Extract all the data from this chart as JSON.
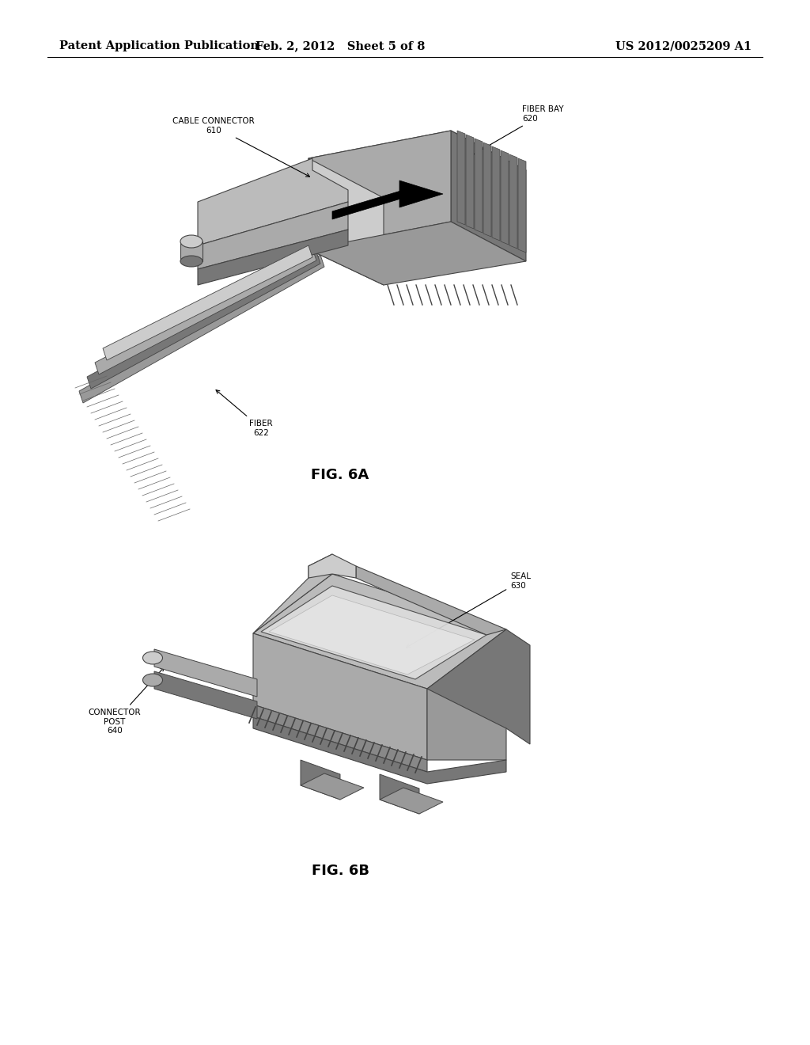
{
  "page_header_left": "Patent Application Publication",
  "page_header_center": "Feb. 2, 2012   Sheet 5 of 8",
  "page_header_right": "US 2012/0025209 A1",
  "fig_a_label": "FIG. 6A",
  "fig_b_label": "FIG. 6B",
  "background_color": "#ffffff",
  "text_color": "#000000",
  "header_fontsize": 10.5,
  "annotation_fontsize": 7.5,
  "fig_label_fontsize": 13,
  "gray_dark": "#444444",
  "gray_med": "#777777",
  "gray_light": "#aaaaaa",
  "gray_very_light": "#cccccc",
  "gray_bg": "#999999",
  "gray_top": "#bbbbbb",
  "seal_color": "#dddddd",
  "hatch_color": "#888888"
}
